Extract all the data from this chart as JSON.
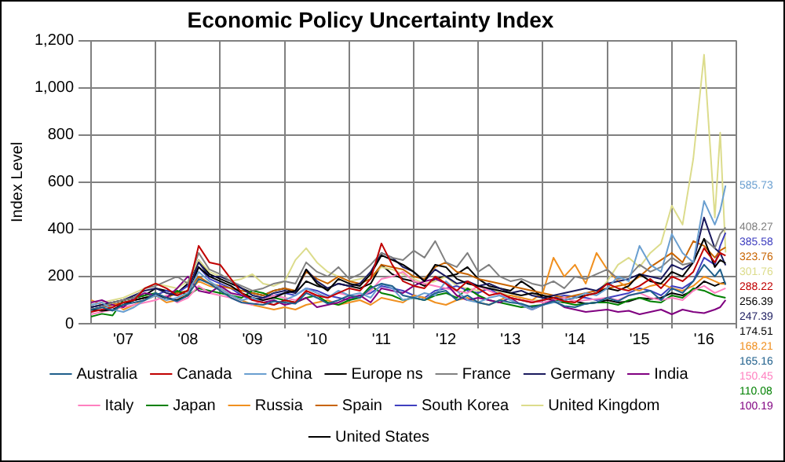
{
  "chart_data": {
    "type": "line",
    "title": "Economic Policy Uncertainty Index",
    "ylabel": "Index Level",
    "x": [
      "2007-01",
      "2007-03",
      "2007-05",
      "2007-07",
      "2007-09",
      "2007-11",
      "2008-01",
      "2008-03",
      "2008-05",
      "2008-07",
      "2008-09",
      "2008-11",
      "2009-01",
      "2009-03",
      "2009-05",
      "2009-07",
      "2009-09",
      "2009-11",
      "2010-01",
      "2010-03",
      "2010-05",
      "2010-07",
      "2010-09",
      "2010-11",
      "2011-01",
      "2011-03",
      "2011-05",
      "2011-07",
      "2011-09",
      "2011-11",
      "2012-01",
      "2012-03",
      "2012-05",
      "2012-07",
      "2012-09",
      "2012-11",
      "2013-01",
      "2013-03",
      "2013-05",
      "2013-07",
      "2013-09",
      "2013-11",
      "2014-01",
      "2014-03",
      "2014-05",
      "2014-07",
      "2014-09",
      "2014-11",
      "2015-01",
      "2015-03",
      "2015-05",
      "2015-07",
      "2015-09",
      "2015-11",
      "2016-01",
      "2016-03",
      "2016-05",
      "2016-07",
      "2016-09",
      "2016-10",
      "2016-11"
    ],
    "xlim": [
      "2007-01",
      "2017-01"
    ],
    "xticks": [
      {
        "value": "2007-07",
        "label": "'07"
      },
      {
        "value": "2008-01",
        "label": null
      },
      {
        "value": "2008-07",
        "label": "'08"
      },
      {
        "value": "2009-01",
        "label": null
      },
      {
        "value": "2009-07",
        "label": "'09"
      },
      {
        "value": "2010-01",
        "label": null
      },
      {
        "value": "2010-07",
        "label": "'10"
      },
      {
        "value": "2011-01",
        "label": null
      },
      {
        "value": "2011-07",
        "label": "'11"
      },
      {
        "value": "2012-01",
        "label": null
      },
      {
        "value": "2012-07",
        "label": "'12"
      },
      {
        "value": "2013-01",
        "label": null
      },
      {
        "value": "2013-07",
        "label": "'13"
      },
      {
        "value": "2014-01",
        "label": null
      },
      {
        "value": "2014-07",
        "label": "'14"
      },
      {
        "value": "2015-01",
        "label": null
      },
      {
        "value": "2015-07",
        "label": "'15"
      },
      {
        "value": "2016-01",
        "label": null
      },
      {
        "value": "2016-07",
        "label": "'16"
      },
      {
        "value": "2017-01",
        "label": null
      }
    ],
    "ylim": [
      0,
      1200
    ],
    "yticks": [
      0,
      200,
      400,
      600,
      800,
      {
        "value": 1000,
        "label": "1,000"
      },
      {
        "value": 1200,
        "label": "1,200"
      }
    ],
    "grid": true,
    "legend": "bottom",
    "series": [
      {
        "name": "Australia",
        "color": "#1f5f8b",
        "values": [
          60,
          70,
          55,
          80,
          90,
          100,
          130,
          110,
          95,
          120,
          190,
          170,
          140,
          110,
          90,
          85,
          80,
          95,
          90,
          85,
          130,
          110,
          85,
          100,
          120,
          110,
          150,
          170,
          160,
          120,
          110,
          100,
          130,
          140,
          100,
          120,
          90,
          80,
          100,
          90,
          85,
          70,
          80,
          95,
          75,
          70,
          85,
          90,
          110,
          95,
          120,
          130,
          140,
          100,
          150,
          130,
          180,
          250,
          200,
          230,
          165.16
        ]
      },
      {
        "name": "Canada",
        "color": "#c00000",
        "values": [
          50,
          60,
          70,
          90,
          100,
          150,
          170,
          150,
          120,
          140,
          330,
          260,
          250,
          190,
          130,
          100,
          90,
          80,
          100,
          90,
          140,
          120,
          110,
          130,
          150,
          140,
          190,
          340,
          250,
          180,
          160,
          150,
          200,
          170,
          140,
          180,
          150,
          120,
          130,
          110,
          100,
          90,
          100,
          110,
          95,
          90,
          120,
          130,
          170,
          150,
          140,
          160,
          190,
          150,
          200,
          180,
          220,
          320,
          260,
          300,
          288.22
        ]
      },
      {
        "name": "China",
        "color": "#6a9fd0",
        "values": [
          80,
          90,
          60,
          50,
          70,
          100,
          120,
          100,
          110,
          130,
          220,
          180,
          150,
          120,
          100,
          110,
          90,
          80,
          100,
          120,
          150,
          130,
          110,
          140,
          120,
          130,
          110,
          170,
          150,
          100,
          110,
          130,
          120,
          180,
          140,
          100,
          90,
          110,
          120,
          100,
          80,
          60,
          80,
          90,
          100,
          110,
          130,
          120,
          150,
          200,
          180,
          330,
          250,
          220,
          380,
          300,
          260,
          520,
          420,
          480,
          585.73
        ]
      },
      {
        "name": "Europe ns",
        "color": "#000000",
        "values": [
          60,
          55,
          60,
          80,
          100,
          110,
          120,
          110,
          100,
          120,
          240,
          200,
          180,
          160,
          130,
          110,
          100,
          110,
          130,
          140,
          230,
          170,
          140,
          190,
          170,
          160,
          210,
          290,
          270,
          250,
          220,
          180,
          250,
          240,
          190,
          170,
          160,
          150,
          140,
          130,
          120,
          130,
          120,
          110,
          100,
          110,
          120,
          130,
          150,
          140,
          160,
          210,
          180,
          170,
          220,
          200,
          260,
          360,
          240,
          270,
          256.39
        ]
      },
      {
        "name": "France",
        "color": "#808080",
        "values": [
          50,
          70,
          90,
          100,
          110,
          150,
          160,
          180,
          200,
          170,
          300,
          230,
          210,
          180,
          160,
          140,
          150,
          170,
          180,
          170,
          260,
          220,
          200,
          240,
          190,
          210,
          250,
          300,
          280,
          270,
          310,
          280,
          350,
          260,
          240,
          300,
          220,
          250,
          200,
          180,
          190,
          170,
          160,
          180,
          150,
          200,
          190,
          210,
          230,
          190,
          200,
          250,
          220,
          240,
          280,
          250,
          260,
          360,
          320,
          380,
          408.27
        ]
      },
      {
        "name": "Germany",
        "color": "#1a1a5e",
        "values": [
          70,
          80,
          90,
          100,
          120,
          140,
          150,
          130,
          120,
          140,
          260,
          200,
          200,
          180,
          150,
          120,
          110,
          130,
          140,
          130,
          230,
          180,
          150,
          170,
          160,
          170,
          220,
          300,
          280,
          240,
          220,
          180,
          230,
          200,
          170,
          180,
          160,
          170,
          150,
          130,
          140,
          120,
          110,
          120,
          130,
          140,
          150,
          140,
          170,
          180,
          190,
          210,
          200,
          190,
          250,
          230,
          260,
          450,
          320,
          300,
          247.39
        ]
      },
      {
        "name": "India",
        "color": "#800080",
        "values": [
          90,
          100,
          80,
          70,
          110,
          130,
          120,
          110,
          150,
          200,
          140,
          130,
          160,
          130,
          120,
          110,
          90,
          100,
          80,
          90,
          110,
          70,
          80,
          90,
          110,
          120,
          90,
          150,
          140,
          130,
          160,
          180,
          190,
          170,
          120,
          100,
          110,
          100,
          90,
          110,
          80,
          60,
          80,
          100,
          70,
          60,
          50,
          55,
          60,
          50,
          55,
          40,
          50,
          60,
          40,
          60,
          50,
          45,
          60,
          70,
          100.19
        ]
      },
      {
        "name": "Italy",
        "color": "#ff80c0",
        "values": [
          40,
          50,
          60,
          70,
          80,
          90,
          100,
          120,
          90,
          110,
          160,
          130,
          120,
          110,
          90,
          80,
          100,
          120,
          110,
          100,
          130,
          120,
          110,
          130,
          120,
          110,
          140,
          190,
          200,
          220,
          180,
          170,
          160,
          150,
          140,
          130,
          160,
          140,
          120,
          110,
          100,
          95,
          90,
          100,
          110,
          95,
          100,
          105,
          110,
          100,
          120,
          130,
          110,
          100,
          110,
          100,
          140,
          160,
          130,
          140,
          150.45
        ]
      },
      {
        "name": "Japan",
        "color": "#008000",
        "values": [
          30,
          42,
          35,
          100,
          110,
          120,
          130,
          110,
          140,
          120,
          150,
          140,
          130,
          120,
          110,
          140,
          130,
          110,
          100,
          90,
          110,
          120,
          90,
          80,
          100,
          110,
          160,
          130,
          120,
          100,
          110,
          100,
          120,
          130,
          110,
          150,
          120,
          100,
          90,
          80,
          70,
          75,
          80,
          100,
          90,
          80,
          85,
          90,
          90,
          80,
          100,
          110,
          95,
          90,
          120,
          110,
          150,
          140,
          120,
          115,
          110.08
        ]
      },
      {
        "name": "Russia",
        "color": "#f09020",
        "values": [
          100,
          80,
          90,
          60,
          80,
          100,
          120,
          90,
          100,
          130,
          180,
          160,
          150,
          120,
          100,
          80,
          70,
          60,
          70,
          60,
          80,
          90,
          100,
          80,
          90,
          100,
          80,
          110,
          100,
          90,
          120,
          110,
          90,
          80,
          100,
          110,
          90,
          80,
          100,
          120,
          110,
          100,
          130,
          280,
          200,
          250,
          170,
          300,
          230,
          180,
          150,
          140,
          160,
          170,
          150,
          140,
          160,
          200,
          180,
          170,
          168.21
        ]
      },
      {
        "name": "Spain",
        "color": "#c86400",
        "values": [
          60,
          70,
          80,
          90,
          100,
          110,
          120,
          110,
          130,
          140,
          200,
          170,
          160,
          150,
          140,
          130,
          120,
          140,
          150,
          140,
          220,
          190,
          170,
          200,
          180,
          170,
          190,
          250,
          240,
          230,
          200,
          190,
          240,
          260,
          220,
          210,
          190,
          180,
          170,
          160,
          150,
          140,
          130,
          120,
          110,
          120,
          130,
          140,
          150,
          160,
          170,
          200,
          240,
          270,
          300,
          260,
          350,
          330,
          280,
          310,
          323.76
        ]
      },
      {
        "name": "South Korea",
        "color": "#4040c0",
        "values": [
          60,
          70,
          80,
          90,
          100,
          110,
          120,
          140,
          130,
          160,
          240,
          190,
          170,
          150,
          120,
          100,
          110,
          120,
          130,
          120,
          150,
          140,
          120,
          110,
          100,
          120,
          130,
          160,
          150,
          140,
          120,
          110,
          140,
          150,
          160,
          140,
          130,
          150,
          120,
          110,
          100,
          90,
          100,
          110,
          120,
          115,
          110,
          100,
          110,
          120,
          130,
          150,
          140,
          120,
          160,
          150,
          180,
          280,
          250,
          330,
          385.58
        ]
      },
      {
        "name": "United Kingdom",
        "color": "#dcdc8c",
        "values": [
          80,
          90,
          100,
          110,
          130,
          150,
          170,
          160,
          150,
          180,
          270,
          220,
          200,
          180,
          190,
          210,
          170,
          160,
          180,
          270,
          320,
          260,
          220,
          200,
          180,
          190,
          200,
          240,
          230,
          210,
          190,
          170,
          180,
          200,
          160,
          150,
          140,
          150,
          130,
          120,
          110,
          100,
          100,
          110,
          95,
          90,
          120,
          130,
          180,
          250,
          280,
          240,
          300,
          340,
          500,
          420,
          700,
          1140,
          450,
          810,
          301.76
        ]
      },
      {
        "name": "United States",
        "color": "#000000",
        "values": [
          70,
          80,
          90,
          100,
          110,
          120,
          150,
          140,
          130,
          170,
          270,
          210,
          190,
          170,
          150,
          130,
          120,
          140,
          150,
          130,
          180,
          160,
          150,
          170,
          160,
          150,
          170,
          250,
          210,
          190,
          180,
          160,
          190,
          200,
          210,
          240,
          190,
          160,
          150,
          140,
          180,
          150,
          110,
          100,
          90,
          95,
          85,
          90,
          100,
          90,
          95,
          110,
          105,
          110,
          130,
          120,
          140,
          180,
          160,
          170,
          174.51
        ]
      }
    ],
    "annotations": [
      "585.73",
      "408.27",
      "385.58",
      "323.76",
      "301.76",
      "288.22",
      "256.39",
      "247.39",
      "174.51",
      "168.21",
      "165.16",
      "150.45",
      "110.08",
      "100.19"
    ]
  }
}
